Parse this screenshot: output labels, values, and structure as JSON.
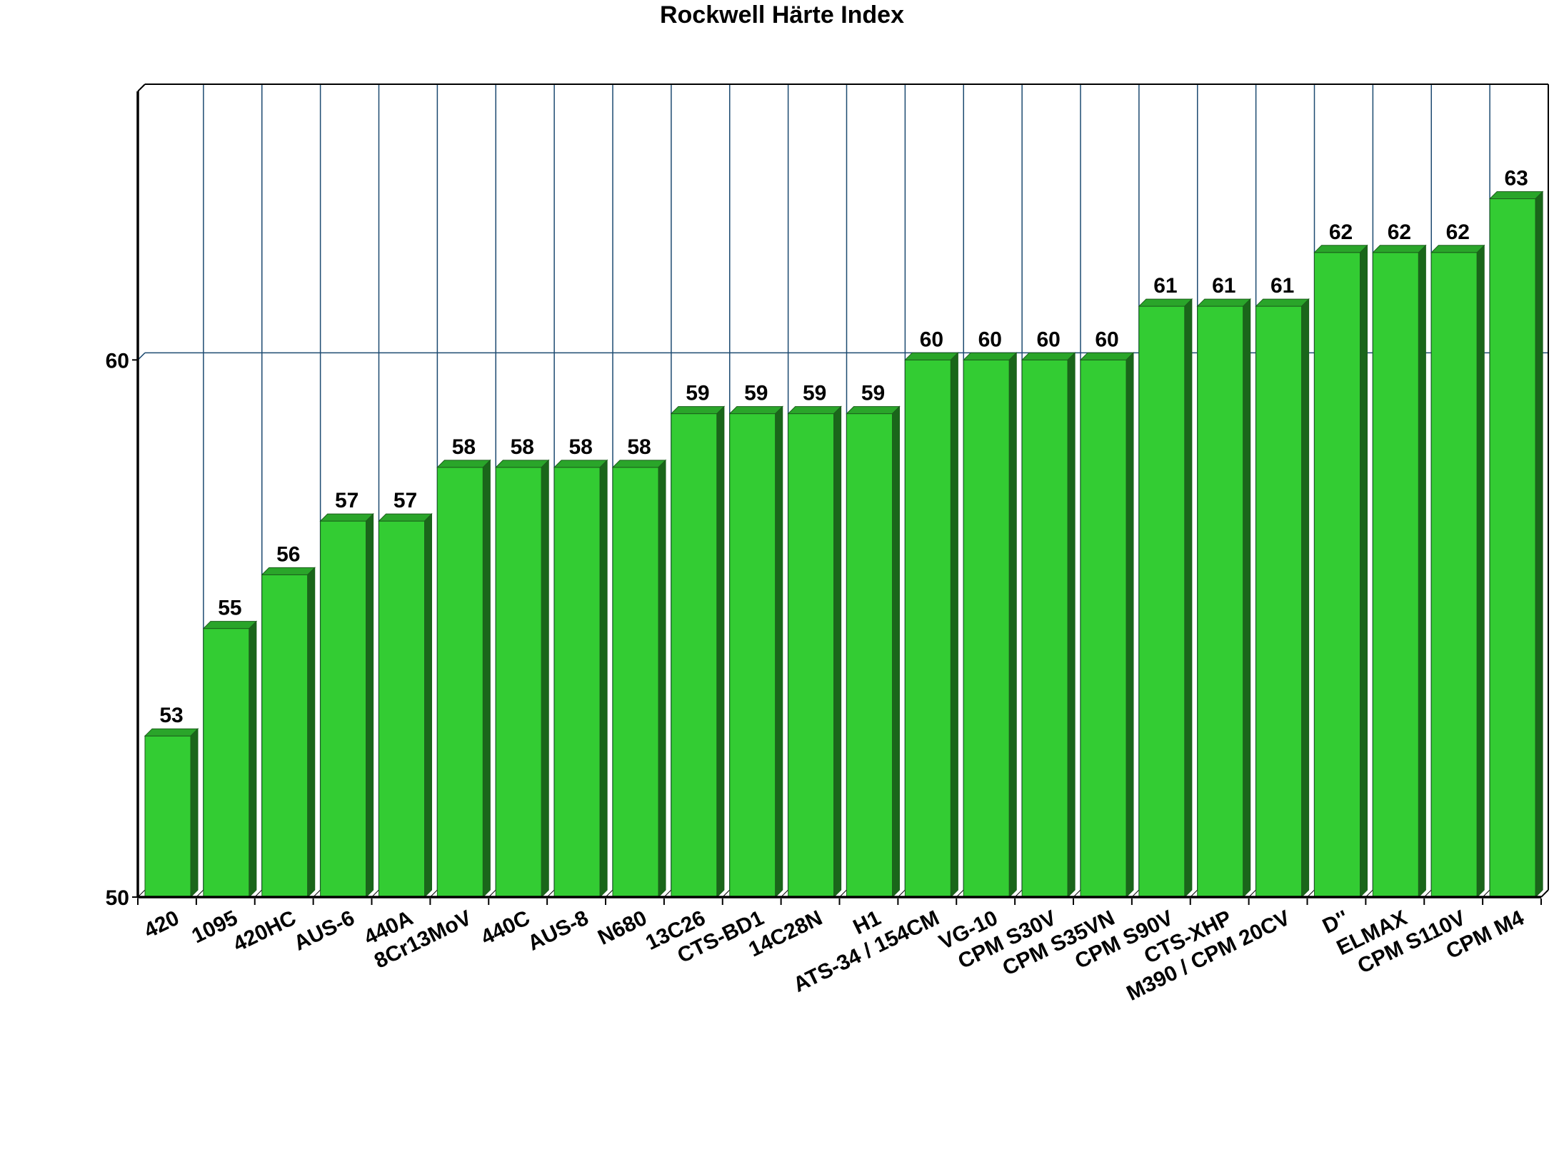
{
  "title": "Rockwell Härte Index",
  "chart_data": {
    "type": "bar",
    "title": "Rockwell Härte Index",
    "categories": [
      "420",
      "1095",
      "420HC",
      "AUS-6",
      "440A",
      "8Cr13MoV",
      "440C",
      "AUS-8",
      "N680",
      "13C26",
      "CTS-BD1",
      "14C28N",
      "H1",
      "ATS-34 / 154CM",
      "VG-10",
      "CPM S30V",
      "CPM S35VN",
      "CPM S90V",
      "CTS-XHP",
      "M390 / CPM 20CV",
      "D''",
      "ELMAX",
      "CPM S110V",
      "CPM M4"
    ],
    "values": [
      53,
      55,
      56,
      57,
      57,
      58,
      58,
      58,
      58,
      59,
      59,
      59,
      59,
      60,
      60,
      60,
      60,
      61,
      61,
      61,
      62,
      62,
      62,
      63
    ],
    "xlabel": "",
    "ylabel": "",
    "ylim": [
      50,
      65
    ],
    "yticks": [
      50,
      60
    ],
    "legend": "none",
    "grid": "vertical-category-separators-and-horizontal-at-60",
    "style": "3d-extruded-bars",
    "colors": {
      "bar_front": "#33cc33",
      "bar_top": "#2aa52a",
      "bar_side": "#1a661a",
      "bar_edge": "#1b5e1b",
      "gridline": "#1c4a70",
      "axis": "#000000",
      "text": "#000000",
      "background": "#ffffff"
    }
  }
}
